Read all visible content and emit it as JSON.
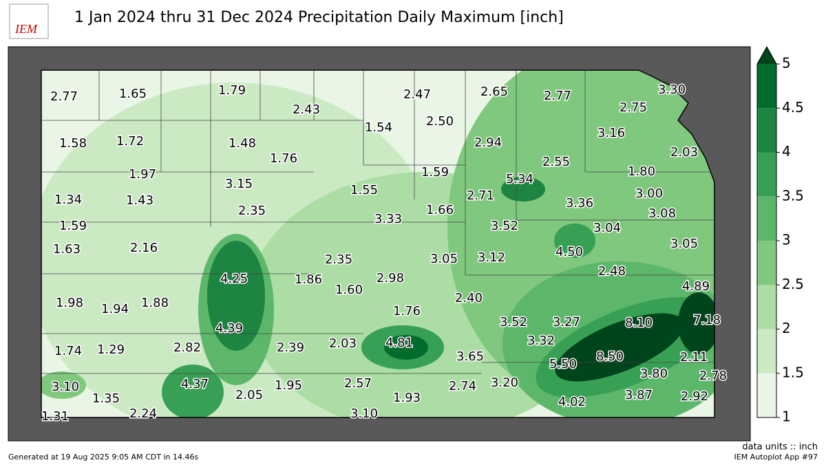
{
  "title": "1 Jan 2024 thru 31 Dec 2024 Precipitation Daily Maximum [inch]",
  "logo": "IEM",
  "station_labels": [
    "2.77",
    "1.65",
    "1.79",
    "2.43",
    "2.47",
    "2.65",
    "2.77",
    "3.30",
    "2.75",
    "1.58",
    "1.72",
    "1.48",
    "1.76",
    "1.54",
    "2.50",
    "2.94",
    "3.16",
    "2.03",
    "2.55",
    "1.80",
    "1.97",
    "3.15",
    "1.55",
    "1.59",
    "5.34",
    "3.00",
    "1.34",
    "1.43",
    "2.35",
    "2.71",
    "3.36",
    "3.08",
    "1.59",
    "3.33",
    "1.66",
    "3.52",
    "3.04",
    "1.63",
    "2.16",
    "3.05",
    "3.12",
    "4.50",
    "3.05",
    "2.35",
    "4.25",
    "1.86",
    "2.98",
    "1.60",
    "2.48",
    "4.89",
    "1.98",
    "1.94",
    "1.88",
    "2.40",
    "1.76",
    "3.52",
    "3.27",
    "8.10",
    "7.18",
    "4.39",
    "2.82",
    "2.39",
    "2.03",
    "4.81",
    "3.32",
    "1.74",
    "1.29",
    "3.65",
    "5.50",
    "8.50",
    "2.11",
    "3.80",
    "2.78",
    "4.37",
    "3.10",
    "2.05",
    "1.95",
    "2.57",
    "2.74",
    "3.20",
    "1.93",
    "4.02",
    "3.87",
    "2.92",
    "1.35",
    "1.31",
    "2.24",
    "3.10"
  ],
  "colorbar": {
    "ticks": [
      1,
      1.5,
      2,
      2.5,
      3,
      3.5,
      4,
      4.5,
      5
    ],
    "lim": [
      1,
      5
    ],
    "colors": [
      "#e9f6e5",
      "#cbeac4",
      "#abdda4",
      "#7fc87e",
      "#5db76a",
      "#37a055",
      "#1d8441",
      "#006d2c"
    ],
    "extend_color": "#00441b"
  },
  "units_note": "data units :: inch",
  "footer_left": "Generated at 19 Aug 2025 9:05 AM CDT in 14.46s",
  "footer_right": "IEM Autoplot App #97"
}
